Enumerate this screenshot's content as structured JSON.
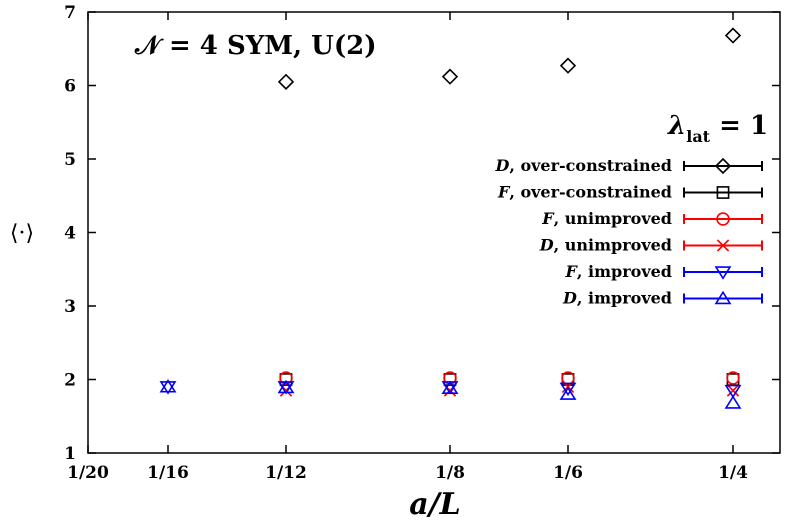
{
  "chart_data": {
    "type": "scatter",
    "title": "𝒩 = 4 SYM, U(2)",
    "annotation": "λlat = 1",
    "xlabel": "a/L",
    "ylabel": "⟨·⟩",
    "xlim": [
      0,
      0.25
    ],
    "ylim": [
      1,
      7
    ],
    "x_ticks": [
      {
        "value": 0.05,
        "label": "1/20"
      },
      {
        "value": 0.0625,
        "label": "1/16"
      },
      {
        "value": 0.0833,
        "label": "1/12"
      },
      {
        "value": 0.125,
        "label": "1/8"
      },
      {
        "value": 0.1667,
        "label": "1/6"
      },
      {
        "value": 0.25,
        "label": "1/4"
      }
    ],
    "y_ticks": [
      1,
      2,
      3,
      4,
      5,
      6,
      7
    ],
    "legend_position": "right",
    "series": [
      {
        "name": "D, over-constrained",
        "color": "#000000",
        "marker": "diamond",
        "x": [
          0.0833,
          0.125,
          0.1667,
          0.25
        ],
        "y": [
          6.05,
          6.12,
          6.27,
          6.68
        ]
      },
      {
        "name": "F, over-constrained",
        "color": "#000000",
        "marker": "square",
        "x": [
          0.0833,
          0.125,
          0.1667,
          0.25
        ],
        "y": [
          2.0,
          2.0,
          2.0,
          2.0
        ]
      },
      {
        "name": "F, unimproved",
        "color": "#ff0000",
        "marker": "circle",
        "x": [
          0.0833,
          0.125,
          0.1667,
          0.25
        ],
        "y": [
          2.02,
          2.02,
          2.02,
          2.02
        ]
      },
      {
        "name": "D, unimproved",
        "color": "#ff0000",
        "marker": "cross",
        "x": [
          0.0833,
          0.125,
          0.1667,
          0.25
        ],
        "y": [
          1.85,
          1.85,
          1.9,
          1.85
        ]
      },
      {
        "name": "F, improved",
        "color": "#0000ff",
        "marker": "triangle-down",
        "x": [
          0.0625,
          0.0833,
          0.125,
          0.1667,
          0.25
        ],
        "y": [
          1.9,
          1.9,
          1.9,
          1.88,
          1.85
        ]
      },
      {
        "name": "D, improved",
        "color": "#0000ff",
        "marker": "triangle-up",
        "x": [
          0.0625,
          0.0833,
          0.125,
          0.1667,
          0.25
        ],
        "y": [
          1.9,
          1.89,
          1.88,
          1.8,
          1.68
        ]
      }
    ]
  }
}
